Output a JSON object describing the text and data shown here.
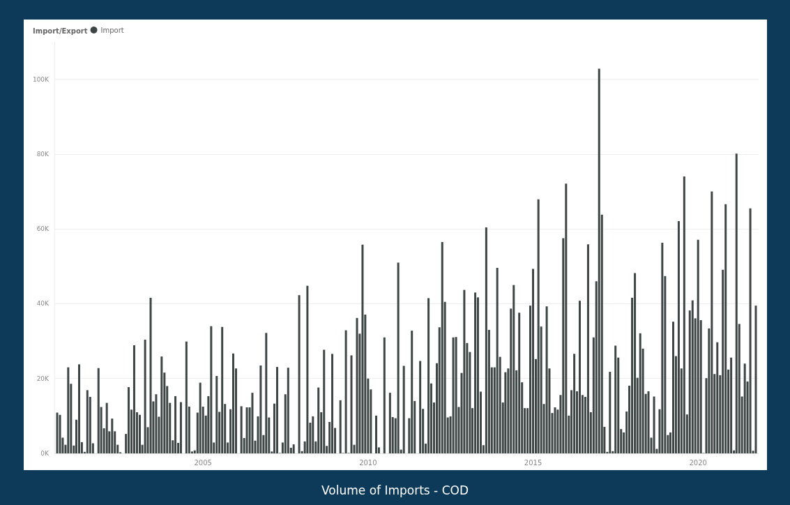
{
  "chart_data": {
    "type": "bar",
    "title": "Volume of Imports - COD",
    "legend_title": "Import/Export",
    "x": [
      "2000-08",
      "2000-09",
      "2000-10",
      "2000-11",
      "2000-12",
      "2001-01",
      "2001-02",
      "2001-03",
      "2001-04",
      "2001-05",
      "2001-06",
      "2001-07",
      "2001-08",
      "2001-09",
      "2001-10",
      "2001-11",
      "2001-12",
      "2002-01",
      "2002-02",
      "2002-03",
      "2002-04",
      "2002-05",
      "2002-06",
      "2002-07",
      "2002-08",
      "2002-09",
      "2002-10",
      "2002-11",
      "2002-12",
      "2003-01",
      "2003-02",
      "2003-03",
      "2003-04",
      "2003-05",
      "2003-06",
      "2003-07",
      "2003-08",
      "2003-09",
      "2003-10",
      "2003-11",
      "2003-12",
      "2004-01",
      "2004-02",
      "2004-03",
      "2004-04",
      "2004-05",
      "2004-06",
      "2004-07",
      "2004-08",
      "2004-09",
      "2004-10",
      "2004-11",
      "2004-12",
      "2005-01",
      "2005-02",
      "2005-03",
      "2005-04",
      "2005-05",
      "2005-06",
      "2005-07",
      "2005-08",
      "2005-09",
      "2005-10",
      "2005-11",
      "2005-12",
      "2006-01",
      "2006-02",
      "2006-03",
      "2006-04",
      "2006-05",
      "2006-06",
      "2006-07",
      "2006-08",
      "2006-09",
      "2006-10",
      "2006-11",
      "2006-12",
      "2007-01",
      "2007-02",
      "2007-03",
      "2007-04",
      "2007-05",
      "2007-06",
      "2007-07",
      "2007-08",
      "2007-09",
      "2007-10",
      "2007-11",
      "2007-12",
      "2008-01",
      "2008-02",
      "2008-03",
      "2008-04",
      "2008-05",
      "2008-06",
      "2008-07",
      "2008-08",
      "2008-09",
      "2008-10",
      "2008-11",
      "2008-12",
      "2009-01",
      "2009-02",
      "2009-03",
      "2009-04",
      "2009-05",
      "2009-06",
      "2009-07",
      "2009-08",
      "2009-09",
      "2009-10",
      "2009-11",
      "2009-12",
      "2010-01",
      "2010-02",
      "2010-03",
      "2010-04",
      "2010-05",
      "2010-06",
      "2010-07",
      "2010-08",
      "2010-09",
      "2010-10",
      "2010-11",
      "2010-12",
      "2011-01",
      "2011-02",
      "2011-03",
      "2011-04",
      "2011-05",
      "2011-06",
      "2011-07",
      "2011-08",
      "2011-09",
      "2011-10",
      "2011-11",
      "2011-12",
      "2012-01",
      "2012-02",
      "2012-03",
      "2012-04",
      "2012-05",
      "2012-06",
      "2012-07",
      "2012-08",
      "2012-09",
      "2012-10",
      "2012-11",
      "2012-12",
      "2013-01",
      "2013-02",
      "2013-03",
      "2013-04",
      "2013-05",
      "2013-06",
      "2013-07",
      "2013-08",
      "2013-09",
      "2013-10",
      "2013-11",
      "2013-12",
      "2014-01",
      "2014-02",
      "2014-03",
      "2014-04",
      "2014-05",
      "2014-06",
      "2014-07",
      "2014-08",
      "2014-09",
      "2014-10",
      "2014-11",
      "2014-12",
      "2015-01",
      "2015-02",
      "2015-03",
      "2015-04",
      "2015-05",
      "2015-06",
      "2015-07",
      "2015-08",
      "2015-09",
      "2015-10",
      "2015-11",
      "2015-12",
      "2016-01",
      "2016-02",
      "2016-03",
      "2016-04",
      "2016-05",
      "2016-06",
      "2016-07",
      "2016-08",
      "2016-09",
      "2016-10",
      "2016-11",
      "2016-12",
      "2017-01",
      "2017-02",
      "2017-03",
      "2017-04",
      "2017-05",
      "2017-06",
      "2017-07",
      "2017-08",
      "2017-09",
      "2017-10",
      "2017-11",
      "2017-12",
      "2018-01",
      "2018-02",
      "2018-03",
      "2018-04",
      "2018-05",
      "2018-06",
      "2018-07",
      "2018-08",
      "2018-09",
      "2018-10",
      "2018-11",
      "2018-12",
      "2019-01",
      "2019-02",
      "2019-03",
      "2019-04",
      "2019-05",
      "2019-06",
      "2019-07",
      "2019-08",
      "2019-09",
      "2019-10",
      "2019-11",
      "2019-12",
      "2020-01",
      "2020-02",
      "2020-03",
      "2020-04",
      "2020-05",
      "2020-06",
      "2020-07",
      "2020-08",
      "2020-09",
      "2020-10",
      "2020-11",
      "2020-12",
      "2021-01",
      "2021-02",
      "2021-03",
      "2021-04",
      "2021-05",
      "2021-06",
      "2021-07",
      "2021-08",
      "2021-09",
      "2021-10"
    ],
    "series": [
      {
        "name": "Import",
        "color": "#3e4645",
        "values": [
          10900,
          10300,
          4200,
          2300,
          23000,
          18600,
          2100,
          9000,
          23800,
          3000,
          400,
          16900,
          15100,
          2700,
          0,
          22800,
          12400,
          6700,
          13500,
          5900,
          9300,
          5900,
          2300,
          300,
          0,
          5200,
          17700,
          11700,
          28900,
          11000,
          10300,
          2300,
          30400,
          7000,
          41600,
          13900,
          15800,
          9800,
          25900,
          21600,
          18000,
          13500,
          3500,
          15300,
          2800,
          13700,
          0,
          29900,
          12500,
          500,
          800,
          10900,
          18900,
          12500,
          10100,
          15300,
          34000,
          2900,
          20700,
          11100,
          33800,
          13200,
          2900,
          11800,
          26700,
          22700,
          0,
          12600,
          4100,
          12300,
          12300,
          16200,
          3400,
          9900,
          23500,
          4900,
          32200,
          9600,
          500,
          13300,
          23100,
          100,
          2900,
          15800,
          22900,
          1500,
          2400,
          0,
          42300,
          600,
          3200,
          44800,
          8200,
          9900,
          3200,
          17600,
          11000,
          27700,
          2000,
          8400,
          26600,
          6800,
          0,
          14200,
          100,
          32900,
          100,
          26200,
          2300,
          36200,
          32000,
          55800,
          37100,
          20000,
          17100,
          0,
          10100,
          1600,
          0,
          31000,
          0,
          16200,
          9700,
          9400,
          51000,
          1000,
          23400,
          0,
          9400,
          32800,
          14000,
          0,
          24700,
          11900,
          2600,
          41500,
          18700,
          13600,
          24100,
          33700,
          56500,
          40500,
          9600,
          9900,
          31000,
          31100,
          12400,
          21500,
          43700,
          29500,
          27100,
          12100,
          43000,
          41700,
          16500,
          2200,
          60400,
          33000,
          23000,
          23000,
          49600,
          25800,
          13600,
          21700,
          22700,
          38700,
          45000,
          22200,
          37600,
          19000,
          12100,
          12100,
          39500,
          49300,
          25200,
          67900,
          33900,
          13200,
          39300,
          22700,
          10800,
          12300,
          11700,
          15600,
          57500,
          72100,
          10100,
          16900,
          26600,
          16600,
          40800,
          15600,
          15100,
          55900,
          11000,
          31000,
          46000,
          102800,
          63800,
          7100,
          400,
          21800,
          600,
          28800,
          25600,
          6500,
          5600,
          11200,
          18100,
          41600,
          48200,
          20200,
          32100,
          28000,
          15900,
          16600,
          4200,
          15200,
          1200,
          11800,
          56300,
          47400,
          4900,
          5600,
          35200,
          26000,
          62100,
          22700,
          74000,
          10400,
          38200,
          40900,
          36100,
          57100,
          35600,
          100,
          20100,
          33400,
          70000,
          21200,
          29700,
          20900,
          49100,
          66600,
          22400,
          25600,
          800,
          80100,
          34600,
          15200,
          24000,
          19200,
          65500,
          700,
          39500
        ]
      }
    ],
    "xlim": [
      "2000-07",
      "2021-11"
    ],
    "xticks": [
      "2005",
      "2010",
      "2015",
      "2020"
    ],
    "ylim": [
      0,
      110000
    ],
    "yticks": [
      {
        "value": 0,
        "label": "0K"
      },
      {
        "value": 20000,
        "label": "20K"
      },
      {
        "value": 40000,
        "label": "40K"
      },
      {
        "value": 60000,
        "label": "60K"
      },
      {
        "value": 80000,
        "label": "80K"
      },
      {
        "value": 100000,
        "label": "100K"
      }
    ],
    "grid": "y",
    "legend": "top left"
  }
}
